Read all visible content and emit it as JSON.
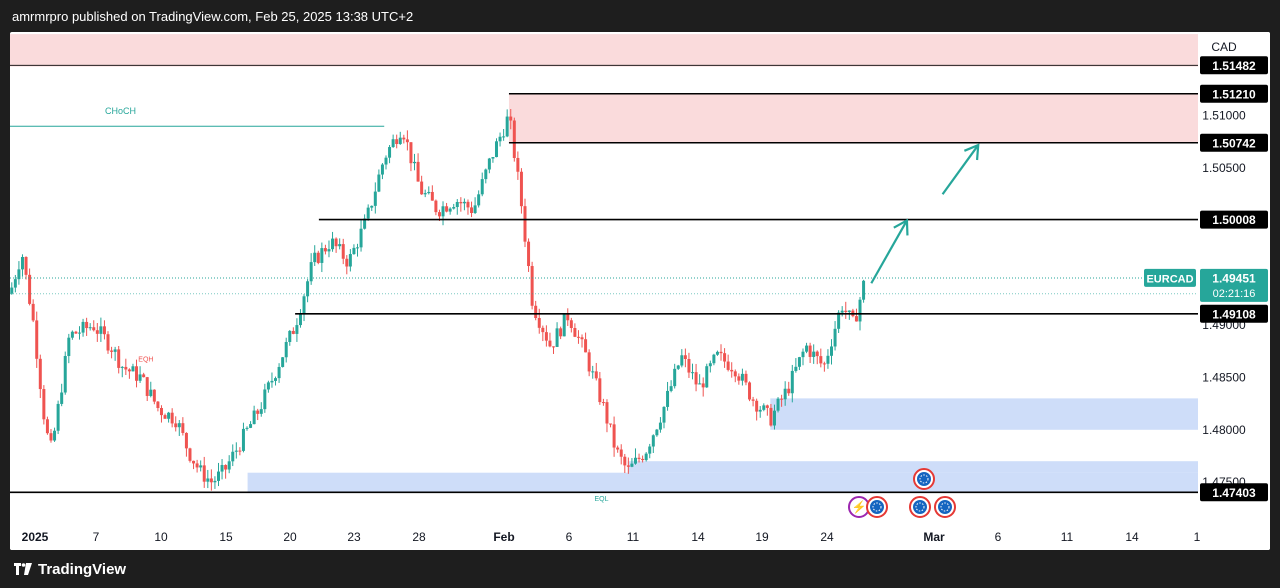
{
  "header": {
    "published_text": "amrmrpro published on TradingView.com, Feb 25, 2025 13:38 UTC+2"
  },
  "footer": {
    "brand": "TradingView"
  },
  "colors": {
    "up": "#26a69a",
    "down": "#ef5350",
    "supply_zone": "#f8cfd0",
    "demand_zone": "#b9cff7",
    "line": "#000000",
    "choch": "#26a69a",
    "arrow": "#26a69a"
  },
  "chart_data": {
    "type": "candlestick",
    "symbol": "EURCAD",
    "currency": "CAD",
    "ylim": [
      1.471,
      1.518
    ],
    "x_ticks": [
      "2025",
      "7",
      "10",
      "15",
      "20",
      "23",
      "28",
      "Feb",
      "6",
      "11",
      "14",
      "19",
      "24",
      "Mar",
      "6",
      "11",
      "14",
      "1"
    ],
    "y_ticks": [
      "1.51000",
      "1.50500",
      "1.49000",
      "1.48500",
      "1.48000",
      "1.47500"
    ],
    "price_labels": [
      "1.51482",
      "1.51210",
      "1.50742",
      "1.50008",
      "1.49108",
      "1.47403"
    ],
    "last_price": {
      "symbol": "EURCAD",
      "value": "1.49451",
      "countdown": "02:21:16"
    },
    "annotations": {
      "choch": "CHoCH",
      "eqh": "EQH",
      "eql": "EQL"
    },
    "levels": [
      1.51482,
      1.5121,
      1.50742,
      1.50008,
      1.49108,
      1.47403
    ],
    "zones": [
      {
        "kind": "supply",
        "from": 1.5147,
        "to": 1.5178,
        "x_start": 0,
        "x_end": 1
      },
      {
        "kind": "supply",
        "from": 1.50742,
        "to": 1.5121,
        "x_start": 0.42,
        "x_end": 1
      },
      {
        "kind": "demand",
        "from": 1.48,
        "to": 1.483,
        "x_start": 0.64,
        "x_end": 1
      },
      {
        "kind": "demand",
        "from": 1.474,
        "to": 1.4759,
        "x_start": 0.2,
        "x_end": 1
      },
      {
        "kind": "demand",
        "from": 1.4759,
        "to": 1.477,
        "x_start": 0.52,
        "x_end": 1
      }
    ],
    "points": [
      {
        "x": 0.0,
        "y": 1.493
      },
      {
        "x": 0.01,
        "y": 1.497
      },
      {
        "x": 0.02,
        "y": 1.49
      },
      {
        "x": 0.03,
        "y": 1.48
      },
      {
        "x": 0.035,
        "y": 1.478
      },
      {
        "x": 0.05,
        "y": 1.489
      },
      {
        "x": 0.07,
        "y": 1.49
      },
      {
        "x": 0.085,
        "y": 1.488
      },
      {
        "x": 0.095,
        "y": 1.486
      },
      {
        "x": 0.11,
        "y": 1.485
      },
      {
        "x": 0.125,
        "y": 1.482
      },
      {
        "x": 0.14,
        "y": 1.481
      },
      {
        "x": 0.15,
        "y": 1.478
      },
      {
        "x": 0.16,
        "y": 1.476
      },
      {
        "x": 0.17,
        "y": 1.475
      },
      {
        "x": 0.18,
        "y": 1.476
      },
      {
        "x": 0.195,
        "y": 1.479
      },
      {
        "x": 0.21,
        "y": 1.482
      },
      {
        "x": 0.225,
        "y": 1.486
      },
      {
        "x": 0.24,
        "y": 1.49
      },
      {
        "x": 0.255,
        "y": 1.496
      },
      {
        "x": 0.27,
        "y": 1.498
      },
      {
        "x": 0.285,
        "y": 1.496
      },
      {
        "x": 0.3,
        "y": 1.5
      },
      {
        "x": 0.315,
        "y": 1.506
      },
      {
        "x": 0.33,
        "y": 1.509
      },
      {
        "x": 0.345,
        "y": 1.503
      },
      {
        "x": 0.36,
        "y": 1.501
      },
      {
        "x": 0.375,
        "y": 1.502
      },
      {
        "x": 0.39,
        "y": 1.501
      },
      {
        "x": 0.405,
        "y": 1.506
      },
      {
        "x": 0.42,
        "y": 1.51
      },
      {
        "x": 0.43,
        "y": 1.502
      },
      {
        "x": 0.44,
        "y": 1.492
      },
      {
        "x": 0.455,
        "y": 1.488
      },
      {
        "x": 0.47,
        "y": 1.491
      },
      {
        "x": 0.485,
        "y": 1.487
      },
      {
        "x": 0.5,
        "y": 1.482
      },
      {
        "x": 0.51,
        "y": 1.478
      },
      {
        "x": 0.52,
        "y": 1.476
      },
      {
        "x": 0.535,
        "y": 1.478
      },
      {
        "x": 0.55,
        "y": 1.482
      },
      {
        "x": 0.565,
        "y": 1.487
      },
      {
        "x": 0.58,
        "y": 1.484
      },
      {
        "x": 0.595,
        "y": 1.487
      },
      {
        "x": 0.61,
        "y": 1.486
      },
      {
        "x": 0.625,
        "y": 1.483
      },
      {
        "x": 0.64,
        "y": 1.481
      },
      {
        "x": 0.655,
        "y": 1.484
      },
      {
        "x": 0.67,
        "y": 1.488
      },
      {
        "x": 0.685,
        "y": 1.486
      },
      {
        "x": 0.7,
        "y": 1.492
      },
      {
        "x": 0.71,
        "y": 1.49
      },
      {
        "x": 0.72,
        "y": 1.4945
      }
    ],
    "projection": [
      {
        "x": 0.725,
        "y": 1.494
      },
      {
        "x": 0.755,
        "y": 1.5
      },
      {
        "x": 0.785,
        "y": 1.5025
      },
      {
        "x": 0.815,
        "y": 1.5072
      }
    ]
  }
}
